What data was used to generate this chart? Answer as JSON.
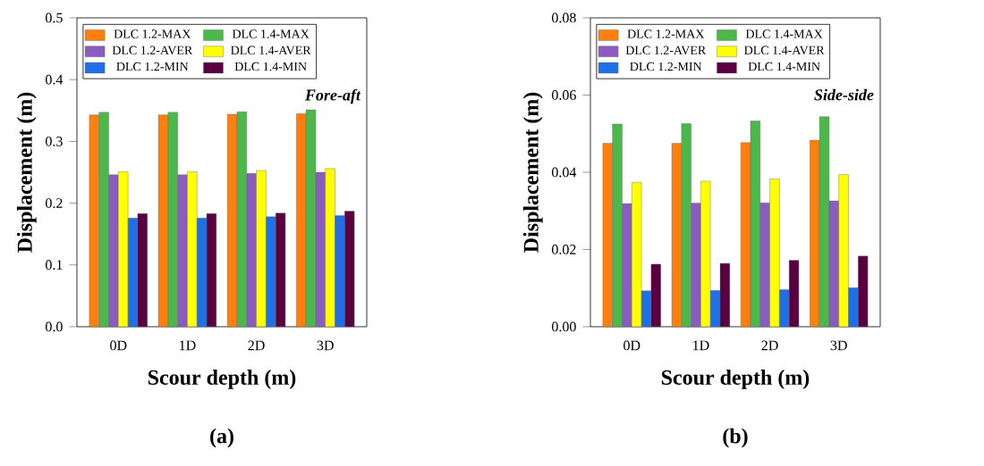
{
  "chart_data": [
    {
      "type": "bar",
      "xlabel": "Scour depth (m)",
      "ylabel": "Displacement (m)",
      "categories": [
        "0D",
        "1D",
        "2D",
        "3D"
      ],
      "ylim": [
        0,
        0.5
      ],
      "yticks": [
        {
          "value": 0,
          "label": "0.0"
        },
        0.1,
        0.2,
        0.3,
        0.4,
        0.5
      ],
      "legend": "top left",
      "annotations": [
        "Fore-aft",
        "(a)"
      ],
      "series": [
        {
          "name": "DLC 1.2-MAX",
          "color": "#ff7f0e",
          "values": [
            0.343,
            0.343,
            0.344,
            0.345
          ]
        },
        {
          "name": "DLC 1.4-MAX",
          "color": "#4cb84c",
          "values": [
            0.347,
            0.347,
            0.348,
            0.351
          ]
        },
        {
          "name": "DLC 1.2-AVER",
          "color": "#8a5cc0",
          "values": [
            0.246,
            0.246,
            0.248,
            0.25
          ]
        },
        {
          "name": "DLC 1.4-AVER",
          "color": "#ffff00",
          "values": [
            0.251,
            0.251,
            0.253,
            0.256
          ]
        },
        {
          "name": "DLC 1.2-MIN",
          "color": "#1f6fe8",
          "values": [
            0.176,
            0.176,
            0.178,
            0.18
          ]
        },
        {
          "name": "DLC 1.4-MIN",
          "color": "#5a0040",
          "values": [
            0.183,
            0.183,
            0.184,
            0.187
          ]
        }
      ]
    },
    {
      "type": "bar",
      "xlabel": "Scour depth (m)",
      "ylabel": "Displacement (m)",
      "categories": [
        "0D",
        "1D",
        "2D",
        "3D"
      ],
      "ylim": [
        0,
        0.08
      ],
      "yticks": [
        {
          "value": 0,
          "label": "0.00"
        },
        0.02,
        0.04,
        0.06,
        0.08
      ],
      "legend": "top left",
      "annotations": [
        "Side-side",
        "(b)"
      ],
      "series": [
        {
          "name": "DLC 1.2-MAX",
          "color": "#ff7f0e",
          "values": [
            0.0475,
            0.0475,
            0.0477,
            0.0483
          ]
        },
        {
          "name": "DLC 1.4-MAX",
          "color": "#4cb84c",
          "values": [
            0.0525,
            0.0526,
            0.0533,
            0.0544
          ]
        },
        {
          "name": "DLC 1.2-AVER",
          "color": "#8a5cc0",
          "values": [
            0.0319,
            0.032,
            0.0321,
            0.0326
          ]
        },
        {
          "name": "DLC 1.4-AVER",
          "color": "#ffff00",
          "values": [
            0.0374,
            0.0377,
            0.0383,
            0.0394
          ]
        },
        {
          "name": "DLC 1.2-MIN",
          "color": "#1f6fe8",
          "values": [
            0.0093,
            0.0094,
            0.0096,
            0.0101
          ]
        },
        {
          "name": "DLC 1.4-MIN",
          "color": "#5a0040",
          "values": [
            0.0162,
            0.0164,
            0.0172,
            0.0183
          ]
        }
      ]
    }
  ]
}
